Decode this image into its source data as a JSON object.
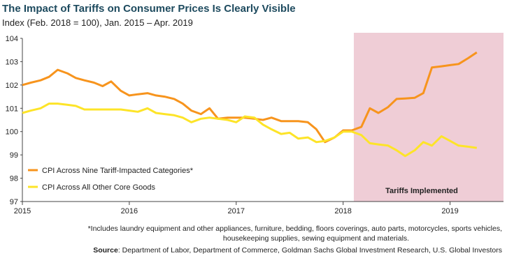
{
  "chart_data": {
    "type": "line",
    "title": "The Impact of Tariffs on Consumer Prices Is Clearly Visible",
    "subtitle": "Index (Feb. 2018 = 100), Jan. 2015 – Apr. 2019",
    "x": [
      2015,
      2015.08,
      2015.17,
      2015.25,
      2015.33,
      2015.42,
      2015.5,
      2015.58,
      2015.67,
      2015.75,
      2015.83,
      2015.92,
      2016,
      2016.08,
      2016.17,
      2016.25,
      2016.33,
      2016.42,
      2016.5,
      2016.58,
      2016.67,
      2016.75,
      2016.83,
      2016.92,
      2017,
      2017.08,
      2017.17,
      2017.25,
      2017.33,
      2017.42,
      2017.5,
      2017.58,
      2017.67,
      2017.75,
      2017.83,
      2017.92,
      2018,
      2018.08,
      2018.17,
      2018.25,
      2018.33,
      2018.42,
      2018.5,
      2018.58,
      2018.67,
      2018.75,
      2018.83,
      2018.92,
      2019,
      2019.08,
      2019.17,
      2019.25
    ],
    "series": [
      {
        "name": "CPI Across Nine Tariff-Impacted Categories*",
        "color": "#f7941d",
        "values": [
          102.0,
          102.1,
          102.2,
          102.35,
          102.65,
          102.5,
          102.3,
          102.2,
          102.1,
          101.95,
          102.15,
          101.75,
          101.55,
          101.6,
          101.65,
          101.55,
          101.5,
          101.4,
          101.2,
          100.9,
          100.75,
          101.0,
          100.55,
          100.6,
          100.6,
          100.6,
          100.55,
          100.5,
          100.6,
          100.45,
          100.45,
          100.45,
          100.4,
          100.1,
          99.55,
          99.75,
          100.05,
          100.05,
          100.2,
          101.0,
          100.8,
          101.05,
          101.4,
          101.42,
          101.45,
          101.65,
          102.75,
          102.8,
          102.85,
          102.9,
          103.15,
          103.4
        ]
      },
      {
        "name": "CPI Across All Other Core Goods",
        "color": "#fde428",
        "values": [
          100.8,
          100.9,
          101.0,
          101.2,
          101.2,
          101.15,
          101.1,
          100.95,
          100.95,
          100.95,
          100.95,
          100.95,
          100.9,
          100.85,
          101.0,
          100.8,
          100.75,
          100.7,
          100.6,
          100.4,
          100.55,
          100.6,
          100.55,
          100.5,
          100.4,
          100.65,
          100.6,
          100.3,
          100.1,
          99.9,
          99.95,
          99.7,
          99.75,
          99.55,
          99.6,
          99.75,
          100.0,
          100.0,
          99.85,
          99.5,
          99.45,
          99.4,
          99.2,
          98.95,
          99.2,
          99.55,
          99.4,
          99.8,
          99.6,
          99.4,
          99.35,
          99.3
        ]
      }
    ],
    "xlim": [
      2015,
      2019.5
    ],
    "xticks": [
      2015,
      2016,
      2017,
      2018,
      2019
    ],
    "ylim": [
      97,
      104
    ],
    "yticks": [
      97,
      98,
      99,
      100,
      101,
      102,
      103,
      104
    ],
    "legend": "lower left",
    "highlight": {
      "from": 2018.1,
      "to": 2019.5,
      "label": "Tariffs Implemented",
      "color": "#efcdd6"
    },
    "footnote": [
      "*Includes laundry equipment and other appliances, furniture, bedding, floors coverings, auto parts, motorcycles, sports vehicles,",
      "housekeeping supplies, sewing equipment and materials."
    ],
    "source": {
      "label": "Source",
      "text": ": Department of Labor, Department of Commerce, Goldman Sachs Global Investment Research, U.S. Global Investors"
    }
  }
}
